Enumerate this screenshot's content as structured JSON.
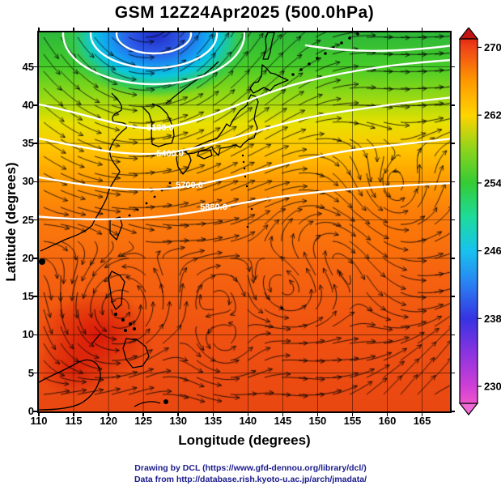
{
  "title": "GSM 12Z24Apr2025 (500.0hPa)",
  "axes": {
    "x_label": "Longitude (degrees)",
    "y_label": "Latitude  (degrees)",
    "x_range": [
      110,
      169
    ],
    "y_range": [
      0,
      49.5
    ],
    "x_ticks": [
      110,
      115,
      120,
      125,
      130,
      135,
      140,
      145,
      150,
      155,
      160,
      165
    ],
    "y_ticks": [
      0,
      5,
      10,
      15,
      20,
      25,
      30,
      35,
      40,
      45
    ]
  },
  "colorbar": {
    "ticks": [
      230,
      238,
      246,
      254,
      262,
      270
    ],
    "range": [
      228,
      271
    ],
    "stops": [
      {
        "v": 228,
        "c": "#ee55cc"
      },
      {
        "v": 230,
        "c": "#cf3fd6"
      },
      {
        "v": 234,
        "c": "#8a33e0"
      },
      {
        "v": 238,
        "c": "#3633e2"
      },
      {
        "v": 242,
        "c": "#2a7ff2"
      },
      {
        "v": 246,
        "c": "#18c2ee"
      },
      {
        "v": 250,
        "c": "#1edb9a"
      },
      {
        "v": 254,
        "c": "#35cc35"
      },
      {
        "v": 258,
        "c": "#8ed41c"
      },
      {
        "v": 262,
        "c": "#ffd400"
      },
      {
        "v": 266,
        "c": "#ff9900"
      },
      {
        "v": 270,
        "c": "#f04418"
      },
      {
        "v": 271,
        "c": "#e02c12"
      }
    ],
    "triangle_top_color": "#c21212",
    "triangle_bottom_color": "#f06ad8"
  },
  "contours": {
    "labels": [
      "5100.0",
      "5400.0",
      "5700.0",
      "5880.0"
    ]
  },
  "credits": {
    "line1": "Drawing by DCL (https://www.gfd-dennou.org/library/dcl/)",
    "line2": "Data from http://database.rish.kyoto-u.ac.jp/arch/jmadata/"
  },
  "chart_data": {
    "type": "heatmap",
    "title": "GSM 12Z24Apr2025 (500.0hPa)",
    "field": "500 hPa temperature shading with wind streamlines (arrows), white geopotential height contours, coastlines and 5-degree grid",
    "xlabel": "Longitude (degrees)",
    "ylabel": "Latitude (degrees)",
    "xlim": [
      110,
      169
    ],
    "ylim": [
      0,
      49.5
    ],
    "x_ticks": [
      110,
      115,
      120,
      125,
      130,
      135,
      140,
      145,
      150,
      155,
      160,
      165
    ],
    "y_ticks": [
      0,
      5,
      10,
      15,
      20,
      25,
      30,
      35,
      40,
      45
    ],
    "colorbar_ticks": [
      230,
      238,
      246,
      254,
      262,
      270
    ],
    "colorbar_range": [
      228,
      271
    ],
    "height_contour_labels_m": [
      5100.0,
      5400.0,
      5700.0,
      5880.0
    ],
    "cold_low": {
      "lon": 126.5,
      "lat": 48.5,
      "shading_value_at_core": 237
    },
    "warm_region": {
      "lon": 119,
      "lat": 12,
      "shading_value": 271
    },
    "zonal_mean_shading_by_latitude": {
      "lat": [
        0,
        5,
        10,
        15,
        20,
        25,
        30,
        35,
        40,
        45,
        49
      ],
      "value": [
        269,
        269,
        268,
        268,
        267,
        266,
        264,
        261,
        256,
        252,
        250
      ]
    },
    "legend_position": "right colorbar",
    "grid": true
  }
}
